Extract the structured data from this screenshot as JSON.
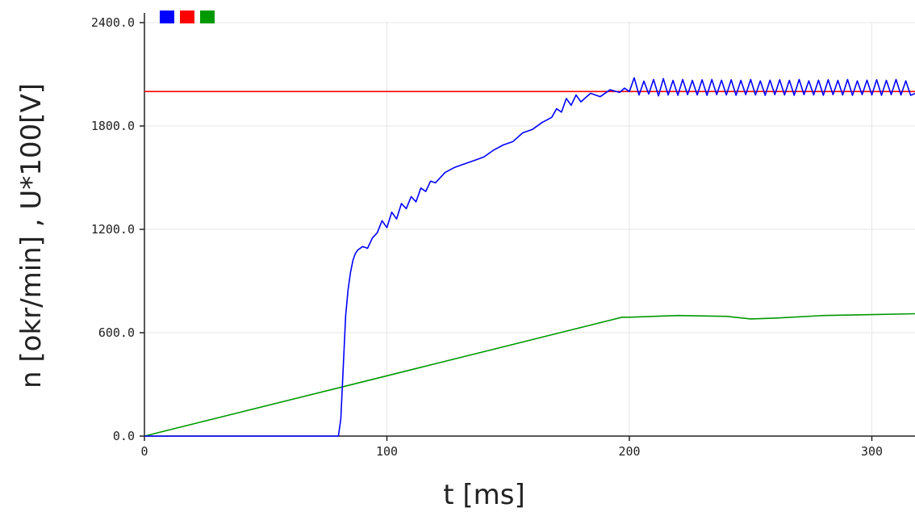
{
  "chart_data": {
    "type": "line",
    "title": "",
    "xlabel": "t [ms]",
    "ylabel": "n [okr/min] , U*100[V]",
    "xlim": [
      0,
      318
    ],
    "ylim": [
      0,
      2400
    ],
    "x_ticks": [
      0,
      100,
      200,
      300
    ],
    "x_tick_labels": [
      "0",
      "100",
      "200",
      "300"
    ],
    "y_ticks": [
      0,
      600,
      1200,
      1800,
      2400
    ],
    "y_tick_labels": [
      "0.0",
      "600.0",
      "1200.0",
      "1800.0",
      "2400.0"
    ],
    "grid": true,
    "legend": {
      "placement": "top-left",
      "entries": [
        {
          "color": "#0000ff",
          "name": ""
        },
        {
          "color": "#ff0000",
          "name": ""
        },
        {
          "color": "#009900",
          "name": ""
        }
      ]
    },
    "series": [
      {
        "color": "#0000ff",
        "x": [
          0,
          80,
          81,
          82,
          83,
          84,
          85,
          86,
          87,
          88,
          90,
          92,
          94,
          96,
          98,
          100,
          102,
          104,
          106,
          108,
          110,
          112,
          114,
          116,
          118,
          120,
          124,
          128,
          132,
          136,
          140,
          144,
          148,
          152,
          156,
          160,
          164,
          168,
          170,
          172,
          174,
          176,
          178,
          180,
          184,
          188,
          192,
          196,
          198,
          200,
          202,
          204,
          206,
          208,
          210,
          212,
          214,
          216,
          218,
          220,
          222,
          224,
          226,
          228,
          230,
          232,
          234,
          236,
          238,
          240,
          242,
          244,
          246,
          248,
          250,
          252,
          254,
          256,
          258,
          260,
          262,
          264,
          266,
          268,
          270,
          272,
          274,
          276,
          278,
          280,
          282,
          284,
          286,
          288,
          290,
          292,
          294,
          296,
          298,
          300,
          302,
          304,
          306,
          308,
          310,
          312,
          314,
          316,
          318
        ],
        "y": [
          0,
          0,
          100,
          400,
          700,
          850,
          950,
          1020,
          1060,
          1080,
          1100,
          1090,
          1150,
          1180,
          1250,
          1210,
          1300,
          1260,
          1350,
          1320,
          1390,
          1360,
          1440,
          1420,
          1480,
          1470,
          1530,
          1560,
          1580,
          1600,
          1620,
          1660,
          1690,
          1710,
          1760,
          1780,
          1820,
          1850,
          1900,
          1880,
          1960,
          1920,
          1980,
          1940,
          1990,
          1970,
          2010,
          1995,
          2020,
          2000,
          2080,
          1980,
          2060,
          1985,
          2070,
          1975,
          2075,
          1980,
          2065,
          1978,
          2070,
          1982,
          2065,
          1980,
          2068,
          1978,
          2070,
          1982,
          2066,
          1980,
          2068,
          1978,
          2065,
          1982,
          2070,
          1980,
          2062,
          1978,
          2066,
          1982,
          2068,
          1980,
          2065,
          1978,
          2070,
          1982,
          2062,
          1980,
          2066,
          1978,
          2068,
          1982,
          2065,
          1980,
          2070,
          1978,
          2062,
          1982,
          2066,
          1980,
          2068,
          1978,
          2065,
          1982,
          2070,
          1980,
          2062,
          1978,
          1990
        ]
      },
      {
        "color": "#ff0000",
        "x": [
          0,
          318
        ],
        "y": [
          2000,
          2000
        ]
      },
      {
        "color": "#009900",
        "x": [
          0,
          40,
          80,
          120,
          160,
          197,
          200,
          220,
          240,
          250,
          260,
          280,
          300,
          318
        ],
        "y": [
          0,
          140,
          280,
          420,
          560,
          690,
          690,
          700,
          695,
          680,
          685,
          700,
          705,
          710
        ]
      }
    ]
  }
}
